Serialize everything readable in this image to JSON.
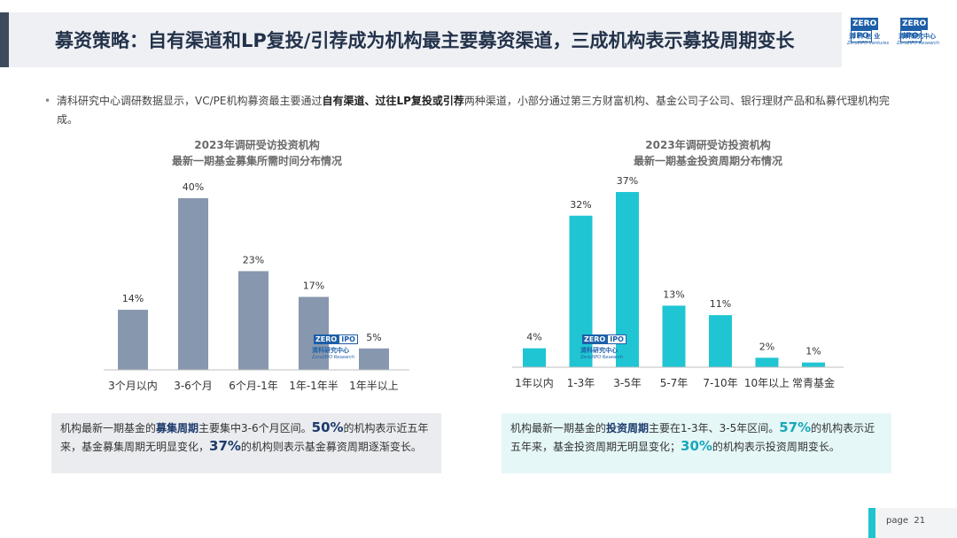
{
  "slide": {
    "title": "募资策略：自有渠道和LP复投/引荐成为机构最主要募资渠道，三成机构表示募投周期变长",
    "page_label": "page",
    "page_number": "21"
  },
  "logos": [
    {
      "zero": "ZERO",
      "ipo": "IPO",
      "cn": "清 科 创 业",
      "en": "Zero2IPO Ventures"
    },
    {
      "zero": "ZERO",
      "ipo": "IPO",
      "cn": "清科研究中心",
      "en": "Zero2IPO Research"
    }
  ],
  "watermark": {
    "zero": "ZERO",
    "ipo": "IPO",
    "cn": "清科研究中心",
    "en": "Zero2IPO Research"
  },
  "intro": {
    "bullet": "•",
    "part1": "清科研究中心调研数据显示，VC/PE机构募资最主要通过",
    "bold": "自有渠道、过往LP复投或引荐",
    "part2": "两种渠道，小部分通过第三方财富机构、基金公司子公司、银行理财产品和私募代理机构完成。"
  },
  "colors": {
    "left_bar": "#8797ae",
    "right_bar": "#20c5d3",
    "axis": "#bfbfbf"
  },
  "chart_data": [
    {
      "type": "bar",
      "title": "2023年调研受访投资机构",
      "subtitle": "最新一期基金募集所需时间分布情况",
      "categories": [
        "3个月以内",
        "3-6个月",
        "6个月-1年",
        "1年-1年半",
        "1年半以上"
      ],
      "values": [
        14,
        40,
        23,
        17,
        5
      ],
      "value_labels": [
        "14%",
        "40%",
        "23%",
        "17%",
        "5%"
      ],
      "unit": "%",
      "ylim": [
        0,
        40
      ],
      "grid": false,
      "xlabel": "",
      "ylabel": ""
    },
    {
      "type": "bar",
      "title": "2023年调研受访投资机构",
      "subtitle": "最新一期基金投资周期分布情况",
      "categories": [
        "1年以内",
        "1-3年",
        "3-5年",
        "5-7年",
        "7-10年",
        "10年以上",
        "常青基金"
      ],
      "values": [
        4,
        32,
        37,
        13,
        11,
        2,
        1
      ],
      "value_labels": [
        "4%",
        "32%",
        "37%",
        "13%",
        "11%",
        "2%",
        "1%"
      ],
      "unit": "%",
      "ylim": [
        0,
        37
      ],
      "grid": false,
      "xlabel": "",
      "ylabel": ""
    }
  ],
  "summary_left": {
    "t1": "机构最新一期基金的",
    "kw": "募集周期",
    "t2": "主要集中3-6个月区间。",
    "n1": "50%",
    "t3": "的机构表示近五年来，基金募集周期无明显变化，",
    "n2": "37%",
    "t4": "的机构则表示基金募资周期逐渐变长。"
  },
  "summary_right": {
    "t1": "机构最新一期基金的",
    "kw": "投资周期",
    "t2": "主要在1-3年、3-5年区间。",
    "n1": "57%",
    "t3": "的机构表示近五年来，基金投资周期无明显变化；",
    "n2": "30%",
    "t4": "的机构表示投资周期变长。"
  }
}
